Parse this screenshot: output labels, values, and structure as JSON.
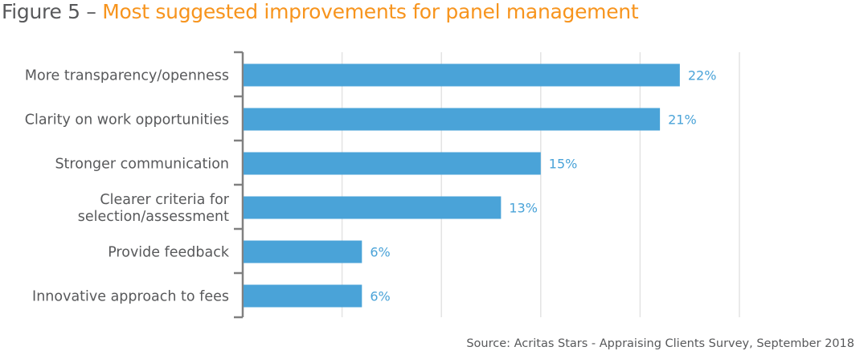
{
  "title_prefix": "Figure 5 – ",
  "title_main": "Most suggested improvements for panel management",
  "source": "Source: Acritas Stars - Appraising Clients Survey, September 2018",
  "colors": {
    "bar": "#4aa3d8",
    "title_accent": "#f7941d",
    "text": "#58595b",
    "grid": "#e3e3e3",
    "axis": "#808080"
  },
  "chart_data": {
    "type": "bar",
    "orientation": "horizontal",
    "categories": [
      [
        "More transparency/openness"
      ],
      [
        "Clarity on work opportunities"
      ],
      [
        "Stronger communication"
      ],
      [
        "Clearer criteria for",
        "selection/assessment"
      ],
      [
        "Provide feedback"
      ],
      [
        "Innovative approach to fees"
      ]
    ],
    "values": [
      22,
      21,
      15,
      13,
      6,
      6
    ],
    "labels": [
      "22%",
      "21%",
      "15%",
      "13%",
      "6%",
      "6%"
    ],
    "xlim": [
      0,
      25
    ],
    "grid_step": 5,
    "grid": true
  }
}
